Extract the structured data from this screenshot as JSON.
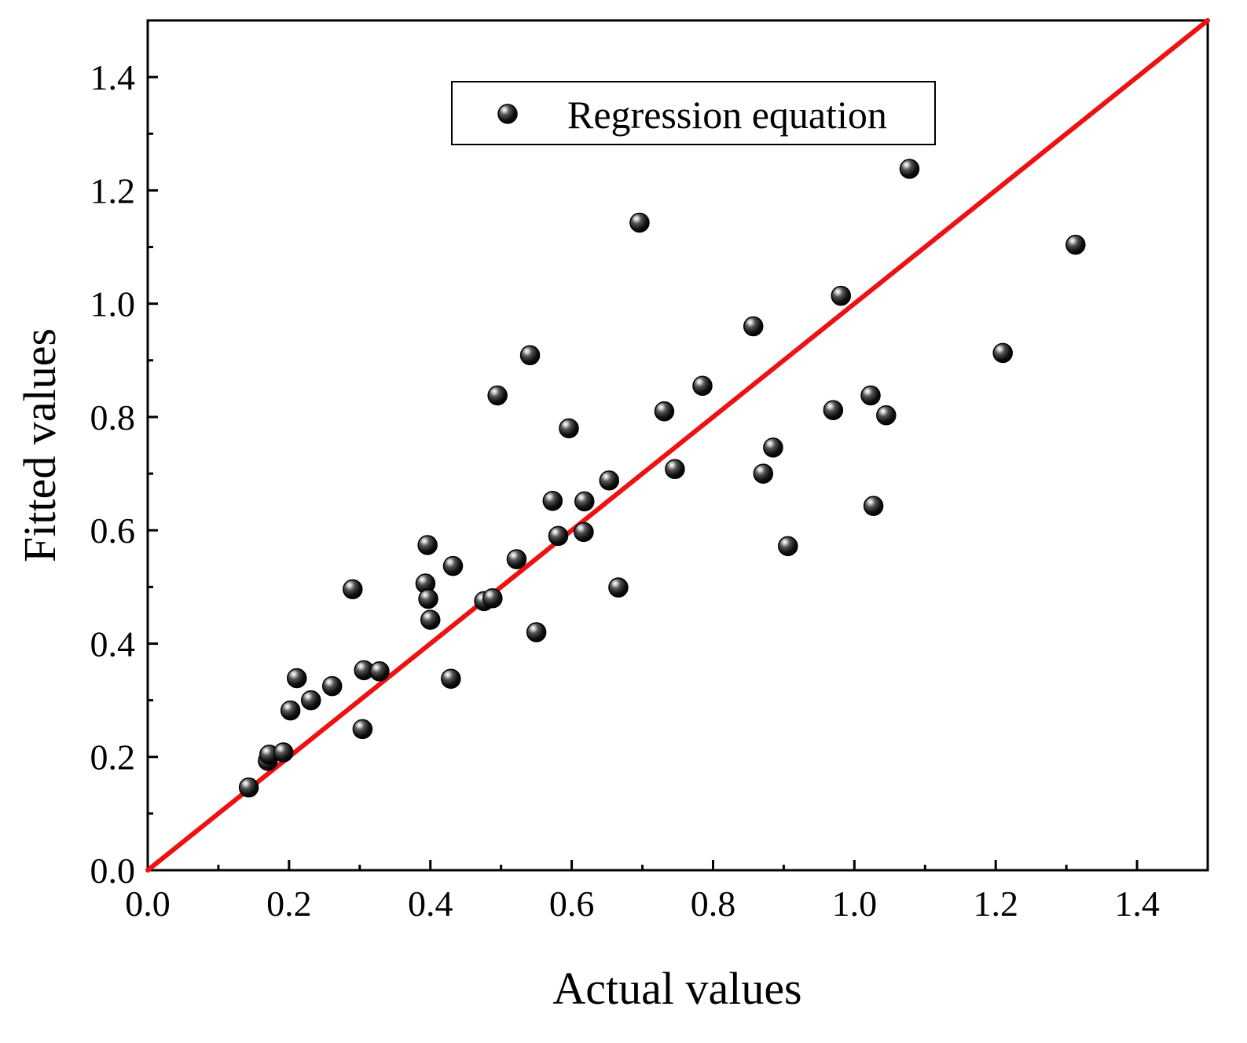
{
  "chart_data": {
    "type": "scatter",
    "title": "",
    "xlabel": "Actual values",
    "ylabel": "Fitted values",
    "xlim": [
      0.0,
      1.5
    ],
    "ylim": [
      0.0,
      1.5
    ],
    "xticks": [
      "0.0",
      "0.2",
      "0.4",
      "0.6",
      "0.8",
      "1.0",
      "1.2",
      "1.4"
    ],
    "yticks": [
      "0.0",
      "0.2",
      "0.4",
      "0.6",
      "0.8",
      "1.0",
      "1.2",
      "1.4"
    ],
    "tick_values": [
      0.0,
      0.2,
      0.4,
      0.6,
      0.8,
      1.0,
      1.2,
      1.4
    ],
    "minor_tick_values": [
      0.1,
      0.3,
      0.5,
      0.7,
      0.9,
      1.1,
      1.3
    ],
    "grid": false,
    "legend": {
      "position": "top-center",
      "entries": [
        "Regression equation"
      ]
    },
    "reference_line": {
      "name": "y = x",
      "color": "#ee1111",
      "x": [
        0.0,
        1.5
      ],
      "y": [
        0.0,
        1.5
      ]
    },
    "series": [
      {
        "name": "Regression equation",
        "marker": "sphere",
        "color": "#000000",
        "points": [
          [
            0.143,
            0.146
          ],
          [
            0.17,
            0.193
          ],
          [
            0.172,
            0.204
          ],
          [
            0.192,
            0.208
          ],
          [
            0.202,
            0.282
          ],
          [
            0.211,
            0.339
          ],
          [
            0.231,
            0.3
          ],
          [
            0.261,
            0.325
          ],
          [
            0.29,
            0.496
          ],
          [
            0.304,
            0.249
          ],
          [
            0.306,
            0.353
          ],
          [
            0.328,
            0.351
          ],
          [
            0.393,
            0.506
          ],
          [
            0.396,
            0.574
          ],
          [
            0.397,
            0.479
          ],
          [
            0.4,
            0.442
          ],
          [
            0.429,
            0.338
          ],
          [
            0.432,
            0.537
          ],
          [
            0.476,
            0.475
          ],
          [
            0.488,
            0.48
          ],
          [
            0.495,
            0.838
          ],
          [
            0.522,
            0.549
          ],
          [
            0.541,
            0.909
          ],
          [
            0.55,
            0.42
          ],
          [
            0.573,
            0.652
          ],
          [
            0.581,
            0.59
          ],
          [
            0.596,
            0.78
          ],
          [
            0.617,
            0.597
          ],
          [
            0.618,
            0.651
          ],
          [
            0.653,
            0.688
          ],
          [
            0.666,
            0.499
          ],
          [
            0.696,
            1.143
          ],
          [
            0.731,
            0.81
          ],
          [
            0.746,
            0.708
          ],
          [
            0.785,
            0.855
          ],
          [
            0.857,
            0.96
          ],
          [
            0.871,
            0.7
          ],
          [
            0.885,
            0.746
          ],
          [
            0.906,
            0.572
          ],
          [
            0.97,
            0.812
          ],
          [
            0.981,
            1.014
          ],
          [
            1.023,
            0.838
          ],
          [
            1.027,
            0.643
          ],
          [
            1.045,
            0.803
          ],
          [
            1.078,
            1.238
          ],
          [
            1.21,
            0.913
          ],
          [
            1.313,
            1.104
          ]
        ]
      }
    ]
  }
}
